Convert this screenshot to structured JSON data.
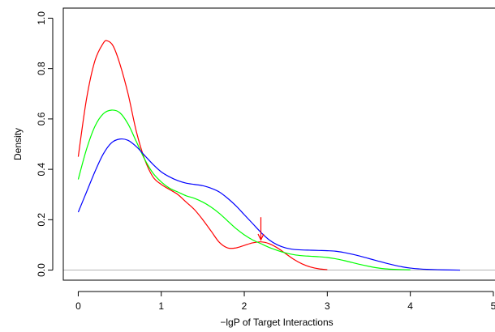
{
  "chart_data": {
    "type": "line",
    "title": "",
    "xlabel": "−lgP of Target Interactions",
    "ylabel": "Density",
    "xlim": [
      -0.18,
      5.02
    ],
    "ylim": [
      -0.04,
      1.04
    ],
    "x_ticks": [
      0,
      1,
      2,
      3,
      4,
      5
    ],
    "x_tick_labels": [
      "0",
      "1",
      "2",
      "3",
      "4",
      "5"
    ],
    "y_ticks": [
      0.0,
      0.2,
      0.4,
      0.6,
      0.8,
      1.0
    ],
    "y_tick_labels": [
      "0.0",
      "0.2",
      "0.4",
      "0.6",
      "0.8",
      "1.0"
    ],
    "grid": false,
    "legend": "none",
    "reference_line": {
      "y": 0,
      "color": "#b3b3b3"
    },
    "series": [
      {
        "color": "#ff0000",
        "points": [
          [
            0.0,
            0.45
          ],
          [
            0.1,
            0.68
          ],
          [
            0.2,
            0.83
          ],
          [
            0.3,
            0.9
          ],
          [
            0.35,
            0.91
          ],
          [
            0.42,
            0.89
          ],
          [
            0.5,
            0.82
          ],
          [
            0.6,
            0.7
          ],
          [
            0.7,
            0.55
          ],
          [
            0.8,
            0.44
          ],
          [
            0.9,
            0.37
          ],
          [
            1.0,
            0.34
          ],
          [
            1.1,
            0.32
          ],
          [
            1.2,
            0.3
          ],
          [
            1.3,
            0.27
          ],
          [
            1.4,
            0.24
          ],
          [
            1.5,
            0.2
          ],
          [
            1.6,
            0.155
          ],
          [
            1.7,
            0.11
          ],
          [
            1.8,
            0.088
          ],
          [
            1.9,
            0.088
          ],
          [
            2.0,
            0.098
          ],
          [
            2.1,
            0.108
          ],
          [
            2.2,
            0.112
          ],
          [
            2.3,
            0.105
          ],
          [
            2.4,
            0.088
          ],
          [
            2.5,
            0.065
          ],
          [
            2.6,
            0.042
          ],
          [
            2.7,
            0.024
          ],
          [
            2.8,
            0.012
          ],
          [
            2.9,
            0.005
          ],
          [
            3.0,
            0.002
          ]
        ]
      },
      {
        "color": "#00ff00",
        "points": [
          [
            0.0,
            0.36
          ],
          [
            0.1,
            0.48
          ],
          [
            0.2,
            0.57
          ],
          [
            0.3,
            0.62
          ],
          [
            0.4,
            0.635
          ],
          [
            0.5,
            0.625
          ],
          [
            0.6,
            0.58
          ],
          [
            0.7,
            0.51
          ],
          [
            0.8,
            0.44
          ],
          [
            0.9,
            0.385
          ],
          [
            1.0,
            0.35
          ],
          [
            1.1,
            0.325
          ],
          [
            1.2,
            0.31
          ],
          [
            1.3,
            0.295
          ],
          [
            1.4,
            0.285
          ],
          [
            1.5,
            0.27
          ],
          [
            1.6,
            0.25
          ],
          [
            1.7,
            0.225
          ],
          [
            1.8,
            0.195
          ],
          [
            1.9,
            0.165
          ],
          [
            2.0,
            0.14
          ],
          [
            2.1,
            0.12
          ],
          [
            2.2,
            0.105
          ],
          [
            2.3,
            0.09
          ],
          [
            2.4,
            0.078
          ],
          [
            2.5,
            0.068
          ],
          [
            2.6,
            0.061
          ],
          [
            2.7,
            0.057
          ],
          [
            2.8,
            0.055
          ],
          [
            2.9,
            0.053
          ],
          [
            3.0,
            0.05
          ],
          [
            3.1,
            0.045
          ],
          [
            3.2,
            0.038
          ],
          [
            3.3,
            0.03
          ],
          [
            3.4,
            0.022
          ],
          [
            3.5,
            0.015
          ],
          [
            3.6,
            0.009
          ],
          [
            3.7,
            0.005
          ],
          [
            3.8,
            0.003
          ],
          [
            4.0,
            0.001
          ]
        ]
      },
      {
        "color": "#0000ff",
        "points": [
          [
            0.0,
            0.23
          ],
          [
            0.1,
            0.31
          ],
          [
            0.2,
            0.39
          ],
          [
            0.3,
            0.46
          ],
          [
            0.4,
            0.505
          ],
          [
            0.5,
            0.52
          ],
          [
            0.6,
            0.515
          ],
          [
            0.7,
            0.49
          ],
          [
            0.8,
            0.455
          ],
          [
            0.9,
            0.42
          ],
          [
            1.0,
            0.39
          ],
          [
            1.1,
            0.37
          ],
          [
            1.2,
            0.355
          ],
          [
            1.3,
            0.345
          ],
          [
            1.4,
            0.34
          ],
          [
            1.5,
            0.335
          ],
          [
            1.6,
            0.325
          ],
          [
            1.7,
            0.31
          ],
          [
            1.8,
            0.285
          ],
          [
            1.9,
            0.255
          ],
          [
            2.0,
            0.22
          ],
          [
            2.1,
            0.185
          ],
          [
            2.2,
            0.15
          ],
          [
            2.3,
            0.12
          ],
          [
            2.4,
            0.1
          ],
          [
            2.5,
            0.088
          ],
          [
            2.6,
            0.082
          ],
          [
            2.7,
            0.08
          ],
          [
            2.8,
            0.079
          ],
          [
            2.9,
            0.078
          ],
          [
            3.0,
            0.077
          ],
          [
            3.1,
            0.075
          ],
          [
            3.2,
            0.07
          ],
          [
            3.3,
            0.063
          ],
          [
            3.4,
            0.055
          ],
          [
            3.5,
            0.046
          ],
          [
            3.6,
            0.037
          ],
          [
            3.7,
            0.028
          ],
          [
            3.8,
            0.02
          ],
          [
            3.9,
            0.013
          ],
          [
            4.0,
            0.008
          ],
          [
            4.1,
            0.005
          ],
          [
            4.2,
            0.003
          ],
          [
            4.4,
            0.001
          ],
          [
            4.6,
            0.0
          ]
        ]
      }
    ],
    "annotations": [
      {
        "type": "arrow",
        "color": "#ff0000",
        "from": [
          2.2,
          0.21
        ],
        "to": [
          2.2,
          0.12
        ]
      }
    ]
  }
}
